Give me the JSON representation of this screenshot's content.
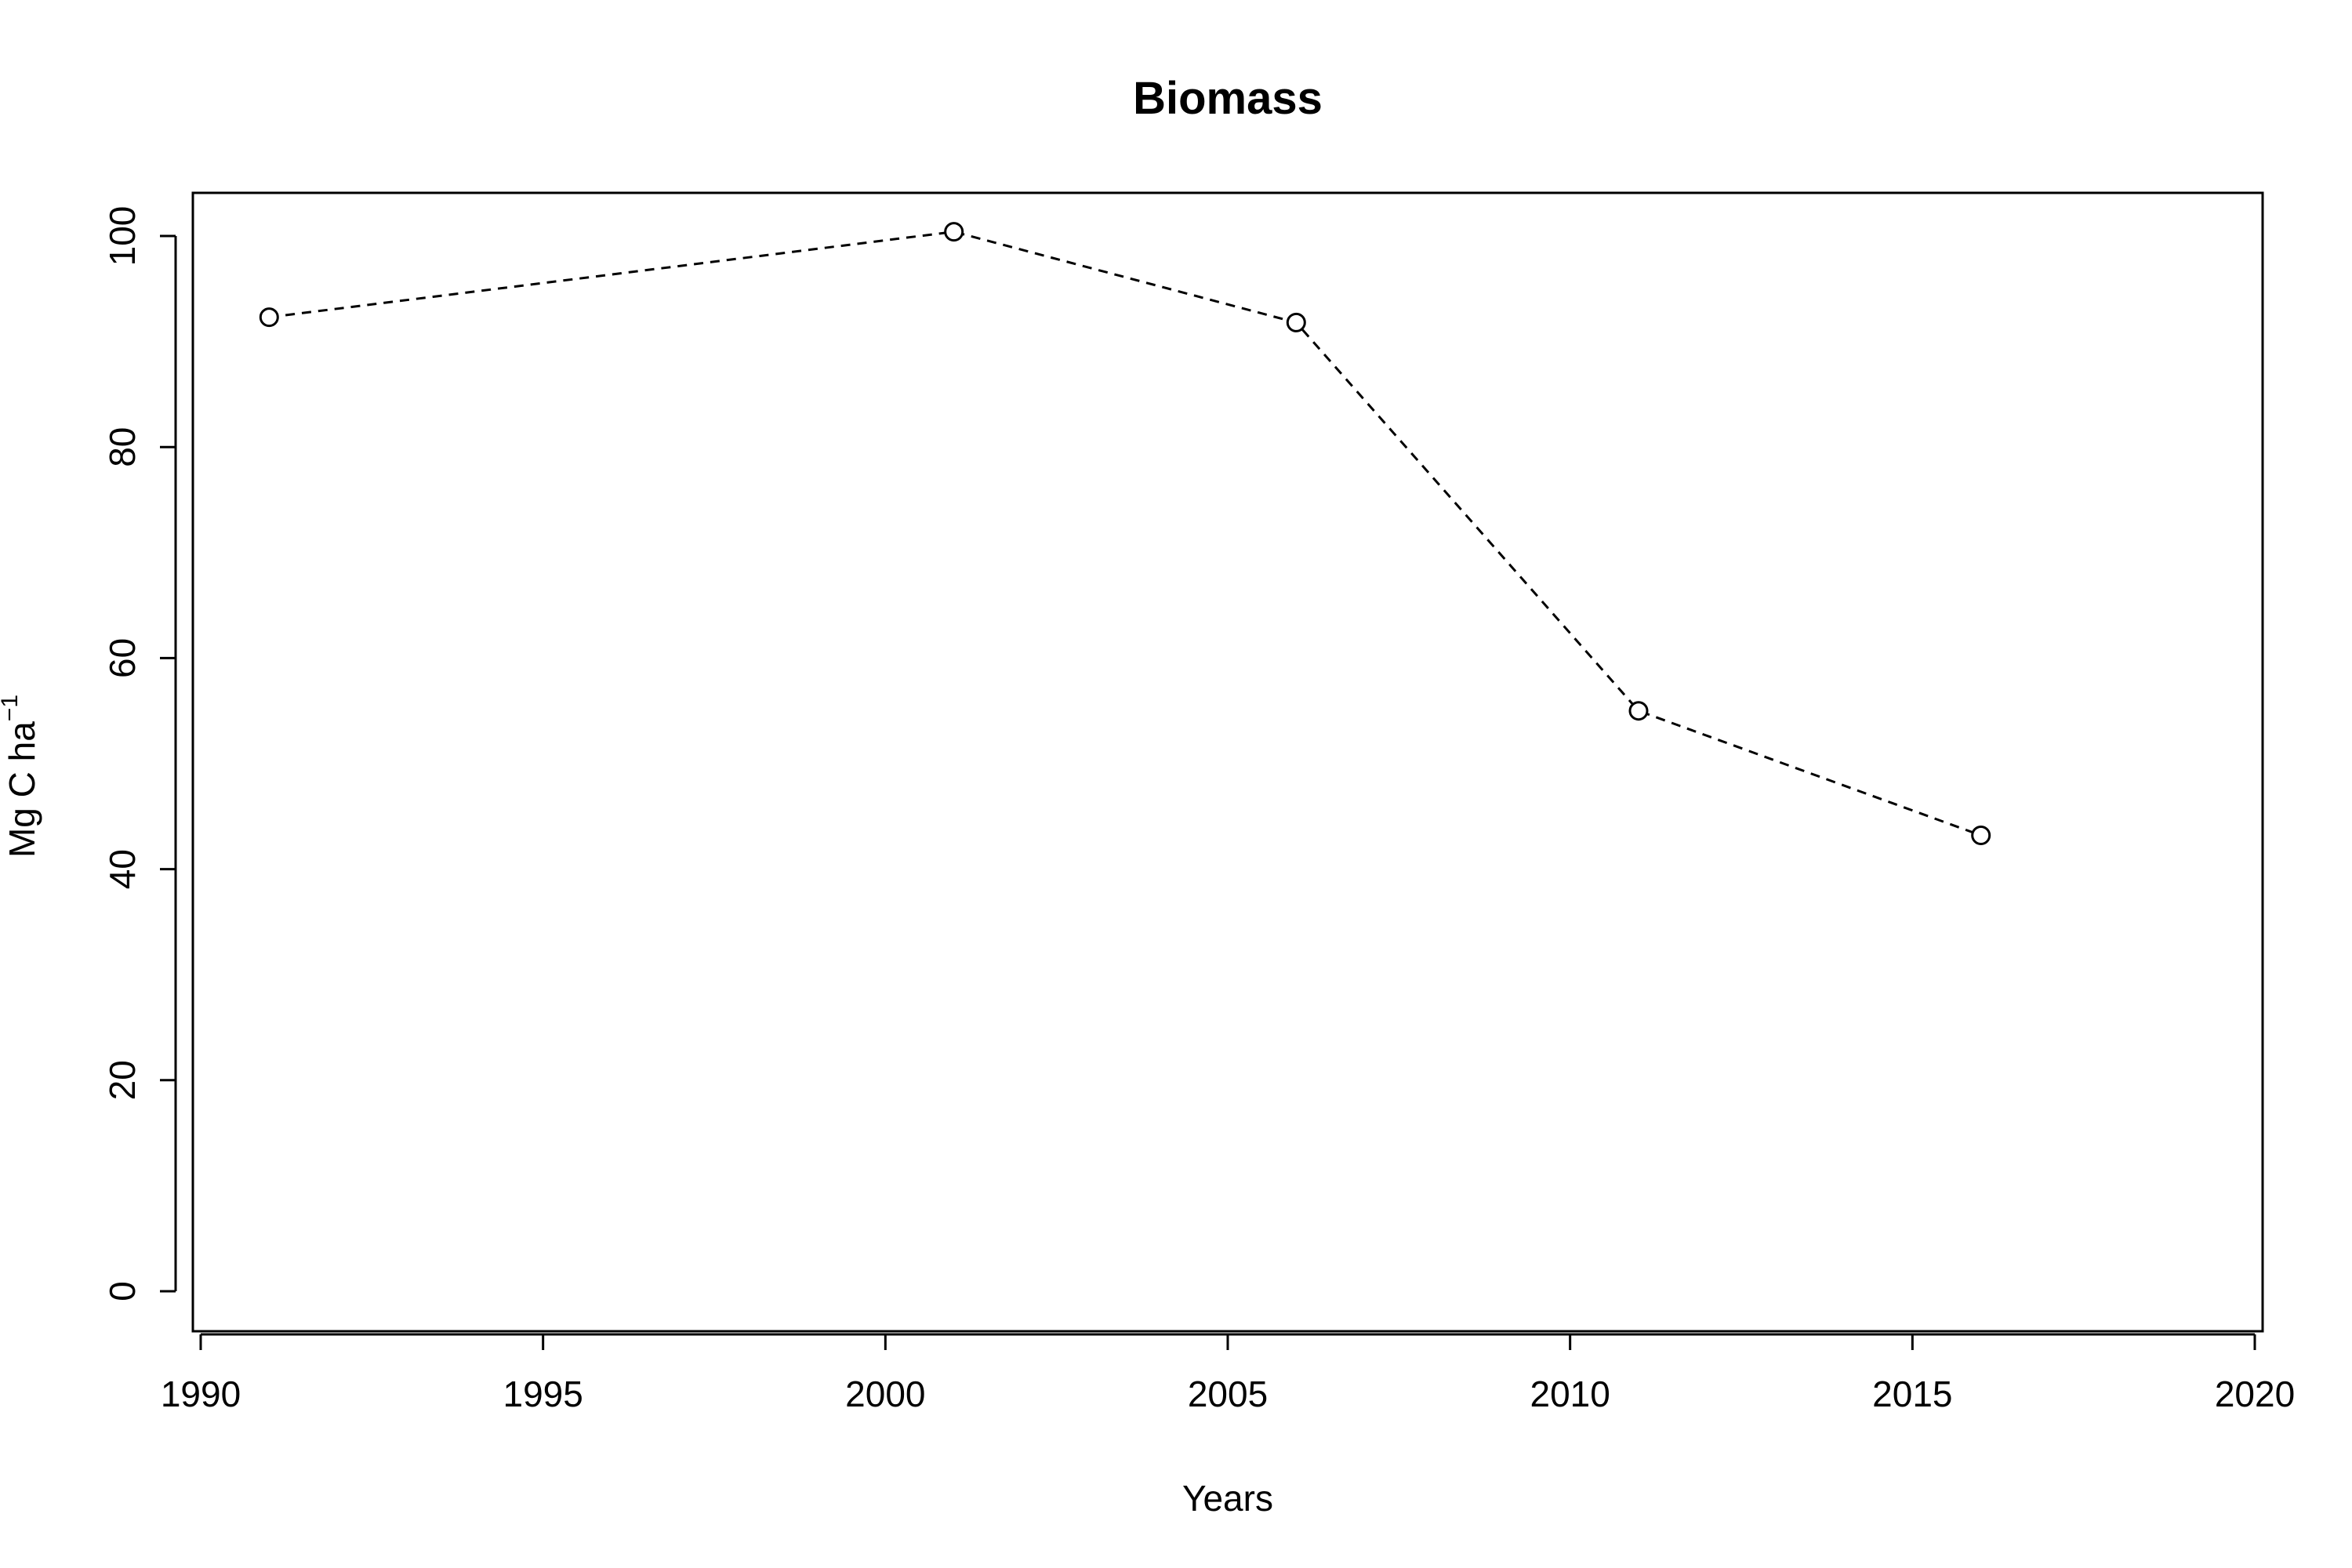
{
  "chart_data": {
    "type": "line",
    "title": "Biomass",
    "xlabel": "Years",
    "ylabel": {
      "main": "Mg C ha",
      "superscript": "−1"
    },
    "x": [
      1991,
      2001,
      2006,
      2011,
      2016
    ],
    "series": [
      {
        "values": [
          92.3,
          100.4,
          91.8,
          55.0,
          43.2
        ]
      }
    ],
    "xlim": [
      1990,
      2020
    ],
    "ylim": [
      0,
      100
    ],
    "xticks": [
      1990,
      1995,
      2000,
      2005,
      2010,
      2015,
      2020
    ],
    "yticks": [
      0,
      20,
      40,
      60,
      80,
      100
    ],
    "line_style": "dashed",
    "marker": "open-circle",
    "line_color": "#000000",
    "grid": false,
    "legend": "none"
  }
}
